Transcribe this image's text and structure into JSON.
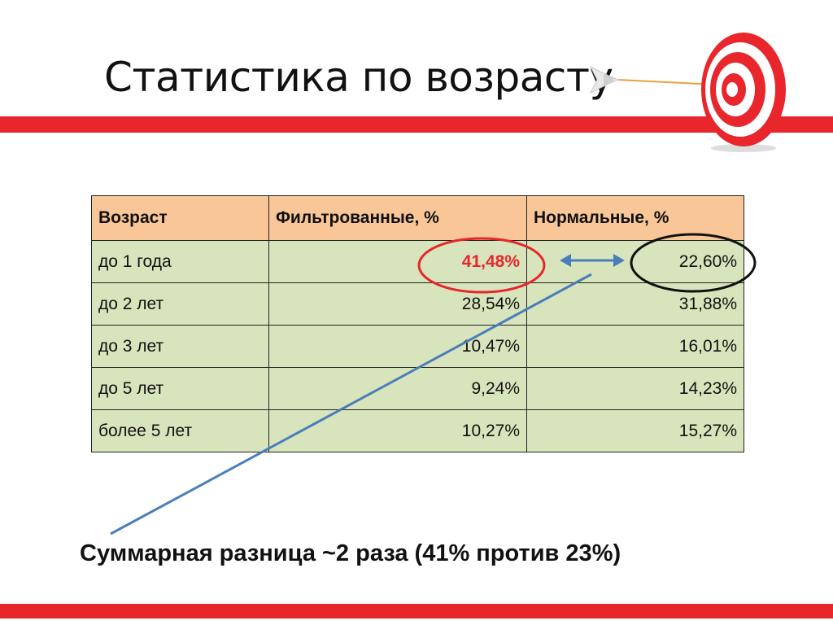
{
  "slide": {
    "title": "Статистика по возрасту",
    "summary": "Суммарная разница ~2 раза (41% против 23%)"
  },
  "table": {
    "headers": [
      "Возраст",
      "Фильтрованные, %",
      "Нормальные, %"
    ],
    "rows": [
      {
        "age": "до 1 года",
        "filtered": "41,48%",
        "normal": "22,60%"
      },
      {
        "age": "до 2 лет",
        "filtered": "28,54%",
        "normal": "31,88%"
      },
      {
        "age": "до 3 лет",
        "filtered": "10,47%",
        "normal": "16,01%"
      },
      {
        "age": "до 5 лет",
        "filtered": "9,24%",
        "normal": "14,23%"
      },
      {
        "age": "более 5 лет",
        "filtered": "10,27%",
        "normal": "15,27%"
      }
    ]
  },
  "colors": {
    "band": "#e8262c",
    "header_fill": "#f9c697",
    "cell_fill": "#d8e4bc",
    "highlight_red": "#e8262c",
    "connector_blue": "#4a7ebb"
  },
  "icons": [
    "target-icon",
    "arrow-icon",
    "double-arrow-icon"
  ]
}
